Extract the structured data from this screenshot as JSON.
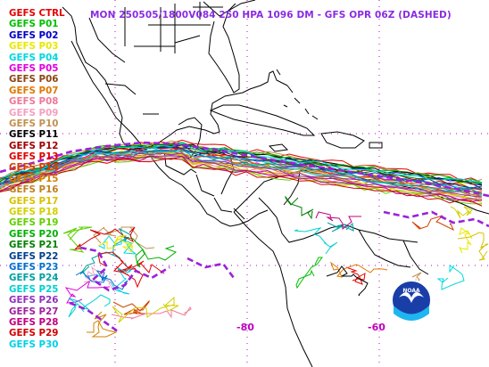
{
  "title": "MON 250505/1800V084  250 HPA 1096 DM - GFS OPR 06Z (DASHED)",
  "longitude_labels": {
    "w80": "-80",
    "w60": "-60"
  },
  "badge": {
    "logo_text": "NOAA",
    "logo_icon": "noaa-seagull-logo-icon"
  },
  "ensemble_members": [
    {
      "label": "GEFS CTRL",
      "color": "#e60000"
    },
    {
      "label": "GEFS P01",
      "color": "#00c000"
    },
    {
      "label": "GEFS P02",
      "color": "#0000c8"
    },
    {
      "label": "GEFS P03",
      "color": "#e8e800"
    },
    {
      "label": "GEFS P04",
      "color": "#00d8e0"
    },
    {
      "label": "GEFS P05",
      "color": "#e000e0"
    },
    {
      "label": "GEFS P06",
      "color": "#8b4513"
    },
    {
      "label": "GEFS P07",
      "color": "#e07800"
    },
    {
      "label": "GEFS P08",
      "color": "#f07898"
    },
    {
      "label": "GEFS P09",
      "color": "#f4a0c0"
    },
    {
      "label": "GEFS P10",
      "color": "#c09050"
    },
    {
      "label": "GEFS P11",
      "color": "#000000"
    },
    {
      "label": "GEFS P12",
      "color": "#a00000"
    },
    {
      "label": "GEFS P13",
      "color": "#e00000"
    },
    {
      "label": "GEFS P14",
      "color": "#d04000"
    },
    {
      "label": "GEFS P15",
      "color": "#d08000"
    },
    {
      "label": "GEFS P16",
      "color": "#c08020"
    },
    {
      "label": "GEFS P17",
      "color": "#d8c000"
    },
    {
      "label": "GEFS P18",
      "color": "#d0d000"
    },
    {
      "label": "GEFS P19",
      "color": "#60d000"
    },
    {
      "label": "GEFS P20",
      "color": "#00b000"
    },
    {
      "label": "GEFS P21",
      "color": "#008000"
    },
    {
      "label": "GEFS P22",
      "color": "#004090"
    },
    {
      "label": "GEFS P23",
      "color": "#0070d0"
    },
    {
      "label": "GEFS P24",
      "color": "#00a0a0"
    },
    {
      "label": "GEFS P25",
      "color": "#00d0d0"
    },
    {
      "label": "GEFS P26",
      "color": "#9030c0"
    },
    {
      "label": "GEFS P27",
      "color": "#a020a0"
    },
    {
      "label": "GEFS P28",
      "color": "#c00080"
    },
    {
      "label": "GEFS P29",
      "color": "#d00000"
    },
    {
      "label": "GEFS P30",
      "color": "#00d0e8"
    }
  ],
  "operational_run_color": "#9a22d8",
  "graticule_color": "#c000c0",
  "title_color": "#8a2be2"
}
